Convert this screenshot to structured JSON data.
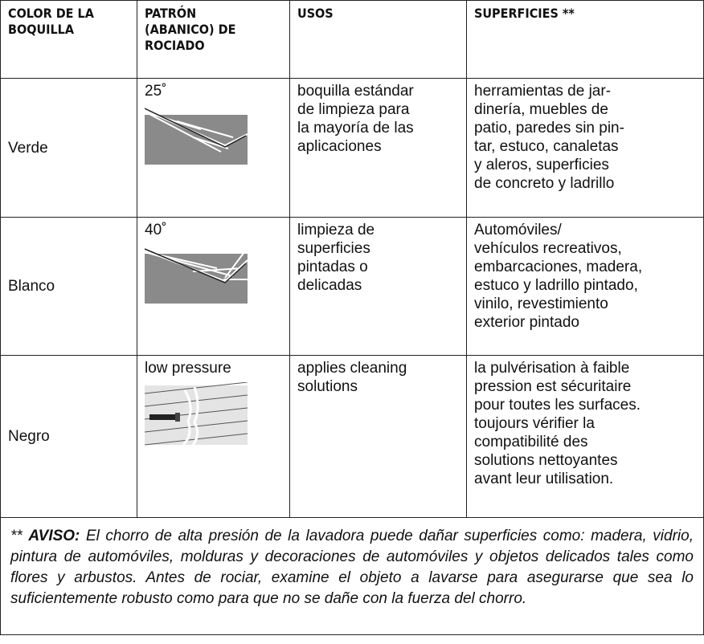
{
  "table": {
    "headers": [
      [
        "COLOR DE LA",
        "BOQUILLA"
      ],
      [
        "PATRÓN",
        "(ABANICO) DE",
        "ROCIADO"
      ],
      [
        "USOS"
      ],
      [
        "SUPERFICIES **"
      ]
    ],
    "rows": [
      [
        "Verde",
        "25˚",
        [
          "boquilla estándar",
          "de limpieza para",
          "la mayoría de las",
          "aplicaciones"
        ],
        [
          "herramientas de jar-",
          "dinería, muebles de",
          "patio, paredes sin pin-",
          "tar, estuco, canaletas",
          "y aleros, superficies",
          "de concreto y ladrillo"
        ]
      ],
      [
        "Blanco",
        "40˚",
        [
          "limpieza de",
          "superficies",
          "pintadas o",
          "delicadas"
        ],
        [
          "Automóviles/",
          "vehículos recreativos,",
          "embarcaciones, madera,",
          "estuco y ladrillo pintado,",
          "vinilo, revestimiento",
          "exterior pintado"
        ]
      ],
      [
        "Negro",
        "low pressure",
        [
          "applies cleaning",
          "solutions"
        ],
        [
          "la pulvérisation à faible",
          "pression est sécuritaire",
          "pour toutes les surfaces.",
          "toujours vérifier la",
          "compatibilité des",
          "solutions nettoyantes",
          "avant leur utilisation."
        ]
      ]
    ]
  },
  "footnote": {
    "marker": "**",
    "label": "AVISO:",
    "text": "El chorro de alta presión de la lavadora puede dañar superficies como: madera, vidrio, pintura de automóviles, molduras y decoraciones de automóviles y objetos delicados tales como flores y arbustos. Antes de rociar, examine el objeto a lavarse para asegurarse que sea lo suficientemente robusto como para que no se dañe con la fuerza del chorro."
  }
}
